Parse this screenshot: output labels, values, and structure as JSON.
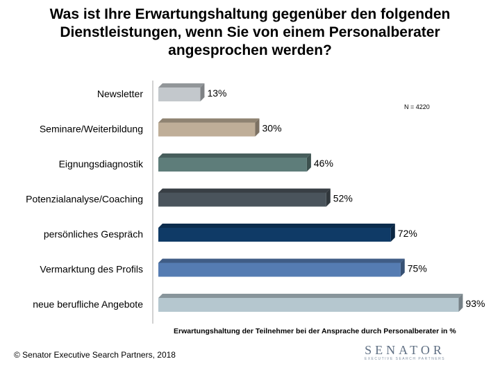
{
  "title": "Was ist Ihre Erwartungshaltung gegenüber den folgenden Dienstleistungen, wenn Sie von einem Personalberater angesprochen werden?",
  "note": "N = 4220",
  "x_axis_label": "Erwartungshaltung der Teilnehmer bei der Ansprache durch Personalberater in %",
  "copyright": "© Senator Executive Search Partners, 2018",
  "logo": {
    "word": "SENATOR",
    "tagline": "EXECUTIVE SEARCH PARTNERS"
  },
  "chart_data": {
    "type": "bar",
    "orientation": "horizontal",
    "categories": [
      "Newsletter",
      "Seminare/Weiterbildung",
      "Eignungsdiagnostik",
      "Potenzialanalyse/Coaching",
      "persönliches Gespräch",
      "Vermarktung des Profils",
      "neue berufliche Angebote"
    ],
    "values": [
      13,
      30,
      46,
      52,
      72,
      75,
      93
    ],
    "value_labels": [
      "13%",
      "30%",
      "46%",
      "52%",
      "72%",
      "75%",
      "93%"
    ],
    "colors": [
      "#c3c8cc",
      "#bfae98",
      "#5e7d7a",
      "#4a545c",
      "#0f3a66",
      "#557cb2",
      "#b5c7cf"
    ],
    "xlabel": "Erwartungshaltung der Teilnehmer bei der Ansprache durch Personalberater in %",
    "xlim": [
      0,
      100
    ],
    "grid": false,
    "legend": "none"
  }
}
